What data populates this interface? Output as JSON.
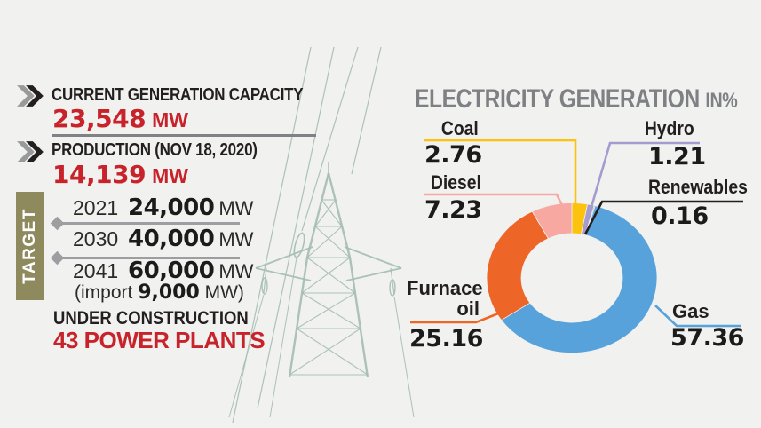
{
  "palette": {
    "background": "#f1f1ef",
    "red": "#c8232b",
    "black": "#231f20",
    "title_gray": "#7e8083",
    "divider_gray": "#9c9ea1",
    "target_olive": "#8f895e",
    "tower_green": "#a4bcb2",
    "white": "#ffffff"
  },
  "left": {
    "capacity": {
      "label": "CURRENT GENERATION CAPACITY",
      "value": "23,548",
      "unit": "MW"
    },
    "production": {
      "label": "PRODUCTION (NOV 18, 2020)",
      "value": "14,139",
      "unit": "MW"
    },
    "target": {
      "label": "TARGET",
      "rows": [
        {
          "year": "2021",
          "value": "24,000",
          "unit": "MW"
        },
        {
          "year": "2030",
          "value": "40,000",
          "unit": "MW"
        },
        {
          "year": "2041",
          "value": "60,000",
          "unit": "MW"
        }
      ],
      "import_note": {
        "prefix": "(import ",
        "value": "9,000",
        "suffix": " MW)"
      }
    },
    "under_construction": {
      "label": "UNDER CONSTRUCTION",
      "value": "43 POWER PLANTS"
    }
  },
  "chart": {
    "title": "ELECTRICITY GENERATION",
    "title_suffix": "IN%"
  },
  "chart_data": {
    "type": "pie",
    "subtype": "donut",
    "title": "ELECTRICITY GENERATION IN%",
    "unit": "%",
    "direction": "clockwise",
    "start_angle_deg": 0,
    "legend_position": "callout-labels",
    "segments": [
      {
        "label": "Coal",
        "value": 2.76,
        "color": "#fcc20d"
      },
      {
        "label": "Hydro",
        "value": 1.21,
        "color": "#a49bce"
      },
      {
        "label": "Renewables",
        "value": 0.16,
        "color": "#231f20"
      },
      {
        "label": "Gas",
        "value": 57.36,
        "color": "#57a2db"
      },
      {
        "label": "Furnace oil",
        "value": 25.16,
        "color": "#ee6528"
      },
      {
        "label": "Diesel",
        "value": 7.23,
        "color": "#f6a8a1"
      }
    ]
  }
}
